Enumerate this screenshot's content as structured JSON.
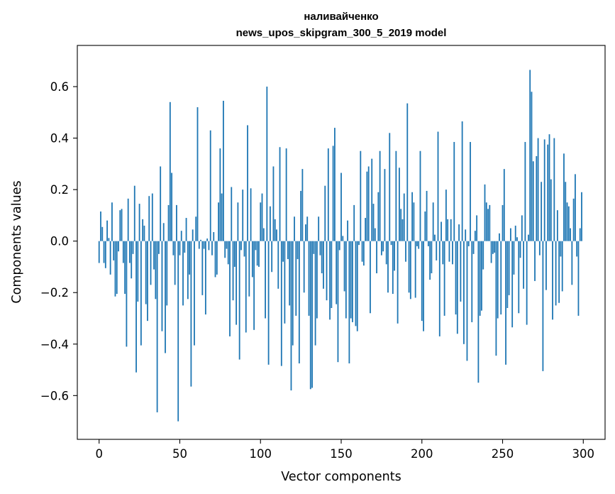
{
  "chart_data": {
    "type": "bar",
    "title_lines": [
      "наливайченко",
      "news_upos_skipgram_300_5_2019 model"
    ],
    "xlabel": "Vector components",
    "ylabel": "Components values",
    "xlim": [
      -13.5,
      313.5
    ],
    "ylim": [
      -0.77,
      0.76
    ],
    "x_ticks": [
      0,
      50,
      100,
      150,
      200,
      250,
      300
    ],
    "x_tick_labels": [
      "0",
      "50",
      "100",
      "150",
      "200",
      "250",
      "300"
    ],
    "y_ticks": [
      -0.6,
      -0.4,
      -0.2,
      0.0,
      0.2,
      0.4,
      0.6
    ],
    "y_tick_labels": [
      "−0.6",
      "−0.4",
      "−0.2",
      "0.0",
      "0.2",
      "0.4",
      "0.6"
    ],
    "bar_color": "#1f77b4",
    "bar_width": 0.8,
    "values": [
      -0.085,
      0.115,
      0.055,
      -0.085,
      -0.105,
      0.08,
      0.012,
      -0.13,
      0.15,
      -0.075,
      -0.215,
      -0.205,
      -0.04,
      0.12,
      0.125,
      -0.085,
      -0.205,
      -0.41,
      0.165,
      -0.085,
      -0.145,
      -0.05,
      0.215,
      -0.51,
      -0.235,
      0.145,
      -0.405,
      0.085,
      0.06,
      -0.245,
      -0.31,
      0.175,
      -0.17,
      0.185,
      -0.11,
      -0.225,
      -0.665,
      -0.05,
      0.29,
      -0.35,
      0.07,
      -0.435,
      -0.25,
      0.14,
      0.54,
      0.265,
      -0.055,
      -0.17,
      0.14,
      -0.7,
      -0.055,
      0.04,
      -0.25,
      -0.045,
      0.09,
      -0.225,
      -0.13,
      -0.565,
      0.045,
      -0.405,
      0.095,
      0.52,
      -0.03,
      0.005,
      -0.21,
      -0.03,
      -0.285,
      0.01,
      -0.035,
      0.43,
      -0.055,
      0.035,
      -0.14,
      -0.13,
      0.15,
      0.36,
      0.185,
      0.545,
      -0.065,
      -0.03,
      -0.09,
      -0.37,
      0.21,
      -0.23,
      -0.1,
      -0.325,
      0.15,
      -0.46,
      -0.035,
      0.2,
      -0.06,
      -0.355,
      0.45,
      -0.215,
      0.205,
      -0.14,
      -0.345,
      -0.035,
      -0.095,
      -0.1,
      0.15,
      0.185,
      0.05,
      -0.3,
      0.6,
      -0.48,
      0.135,
      -0.12,
      0.29,
      0.085,
      0.045,
      -0.185,
      0.365,
      -0.485,
      -0.08,
      -0.32,
      0.36,
      -0.07,
      -0.25,
      -0.58,
      -0.405,
      0.095,
      -0.29,
      -0.07,
      -0.475,
      0.195,
      0.28,
      -0.2,
      0.065,
      0.095,
      -0.29,
      -0.575,
      -0.57,
      -0.05,
      -0.405,
      -0.3,
      0.095,
      -0.055,
      -0.125,
      -0.185,
      0.215,
      -0.23,
      0.36,
      -0.305,
      -0.26,
      0.37,
      0.44,
      -0.245,
      -0.47,
      -0.035,
      0.265,
      0.02,
      -0.195,
      -0.3,
      0.08,
      -0.475,
      -0.3,
      -0.315,
      0.14,
      -0.33,
      -0.35,
      -0.015,
      0.35,
      -0.08,
      -0.095,
      0.09,
      0.27,
      0.29,
      -0.28,
      0.32,
      0.145,
      0.05,
      -0.125,
      0.19,
      0.35,
      -0.055,
      -0.04,
      0.28,
      -0.09,
      -0.2,
      0.42,
      -0.015,
      -0.205,
      -0.115,
      0.35,
      -0.32,
      0.285,
      0.125,
      0.085,
      0.185,
      -0.08,
      0.535,
      -0.2,
      -0.225,
      0.19,
      0.15,
      -0.22,
      -0.02,
      -0.03,
      0.35,
      -0.31,
      -0.35,
      0.115,
      0.195,
      -0.02,
      -0.15,
      -0.125,
      0.15,
      0.025,
      -0.075,
      0.425,
      -0.37,
      0.075,
      -0.09,
      -0.29,
      0.2,
      0.085,
      -0.08,
      0.085,
      -0.09,
      0.385,
      -0.285,
      -0.36,
      0.065,
      -0.235,
      0.465,
      -0.4,
      0.045,
      -0.465,
      -0.02,
      0.385,
      -0.315,
      -0.05,
      0.04,
      0.1,
      -0.55,
      -0.29,
      -0.27,
      -0.11,
      0.22,
      0.15,
      0.125,
      0.14,
      -0.085,
      -0.05,
      -0.045,
      -0.445,
      -0.3,
      0.03,
      -0.285,
      0.14,
      0.28,
      -0.48,
      -0.26,
      -0.21,
      0.05,
      -0.335,
      -0.13,
      0.06,
      0.015,
      -0.28,
      -0.065,
      0.1,
      -0.185,
      0.385,
      -0.325,
      0.025,
      0.665,
      0.58,
      0.31,
      -0.155,
      0.33,
      0.4,
      -0.055,
      0.23,
      -0.505,
      0.395,
      -0.19,
      0.375,
      0.415,
      0.24,
      -0.305,
      0.4,
      -0.25,
      0.12,
      -0.24,
      -0.06,
      -0.195,
      0.34,
      0.23,
      0.15,
      0.135,
      0.05,
      -0.17,
      0.165,
      0.26,
      -0.06,
      -0.29,
      0.05,
      0.19
    ]
  }
}
